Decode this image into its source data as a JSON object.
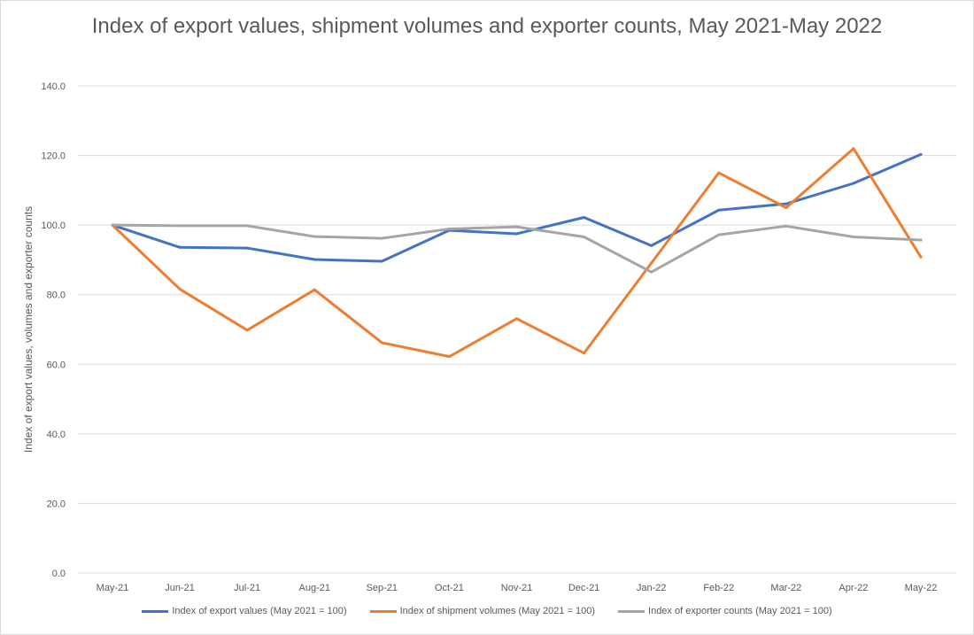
{
  "chart_data": {
    "type": "line",
    "title": "Index of export values, shipment volumes and exporter counts, May 2021-May 2022",
    "xlabel": "",
    "ylabel": "Index of export values, volumes and exporter counts",
    "ylim": [
      0,
      140
    ],
    "yticks": [
      "0.0",
      "20.0",
      "40.0",
      "60.0",
      "80.0",
      "100.0",
      "120.0",
      "140.0"
    ],
    "grid": true,
    "legend_position": "bottom",
    "categories": [
      "May-21",
      "Jun-21",
      "Jul-21",
      "Aug-21",
      "Sep-21",
      "Oct-21",
      "Nov-21",
      "Dec-21",
      "Jan-22",
      "Feb-22",
      "Mar-22",
      "Apr-22",
      "May-22"
    ],
    "series": [
      {
        "name": "Index of export values (May 2021 = 100)",
        "color": "#4472c4",
        "values": [
          100,
          93.6,
          93.4,
          90.1,
          89.6,
          98.5,
          97.5,
          102.2,
          94.1,
          104.3,
          106.1,
          112.0,
          120.3
        ]
      },
      {
        "name": "Index of shipment volumes (May 2021 = 100)",
        "color": "#ed7d31",
        "values": [
          100,
          81.6,
          69.8,
          81.4,
          66.2,
          62.2,
          73.1,
          63.2,
          89.1,
          115.0,
          105.0,
          122.0,
          90.8
        ]
      },
      {
        "name": "Index of exporter counts (May 2021 = 100)",
        "color": "#a5a5a5",
        "values": [
          100,
          99.8,
          99.8,
          96.7,
          96.2,
          98.9,
          99.5,
          96.6,
          86.5,
          97.2,
          99.7,
          96.6,
          95.7
        ]
      }
    ]
  }
}
